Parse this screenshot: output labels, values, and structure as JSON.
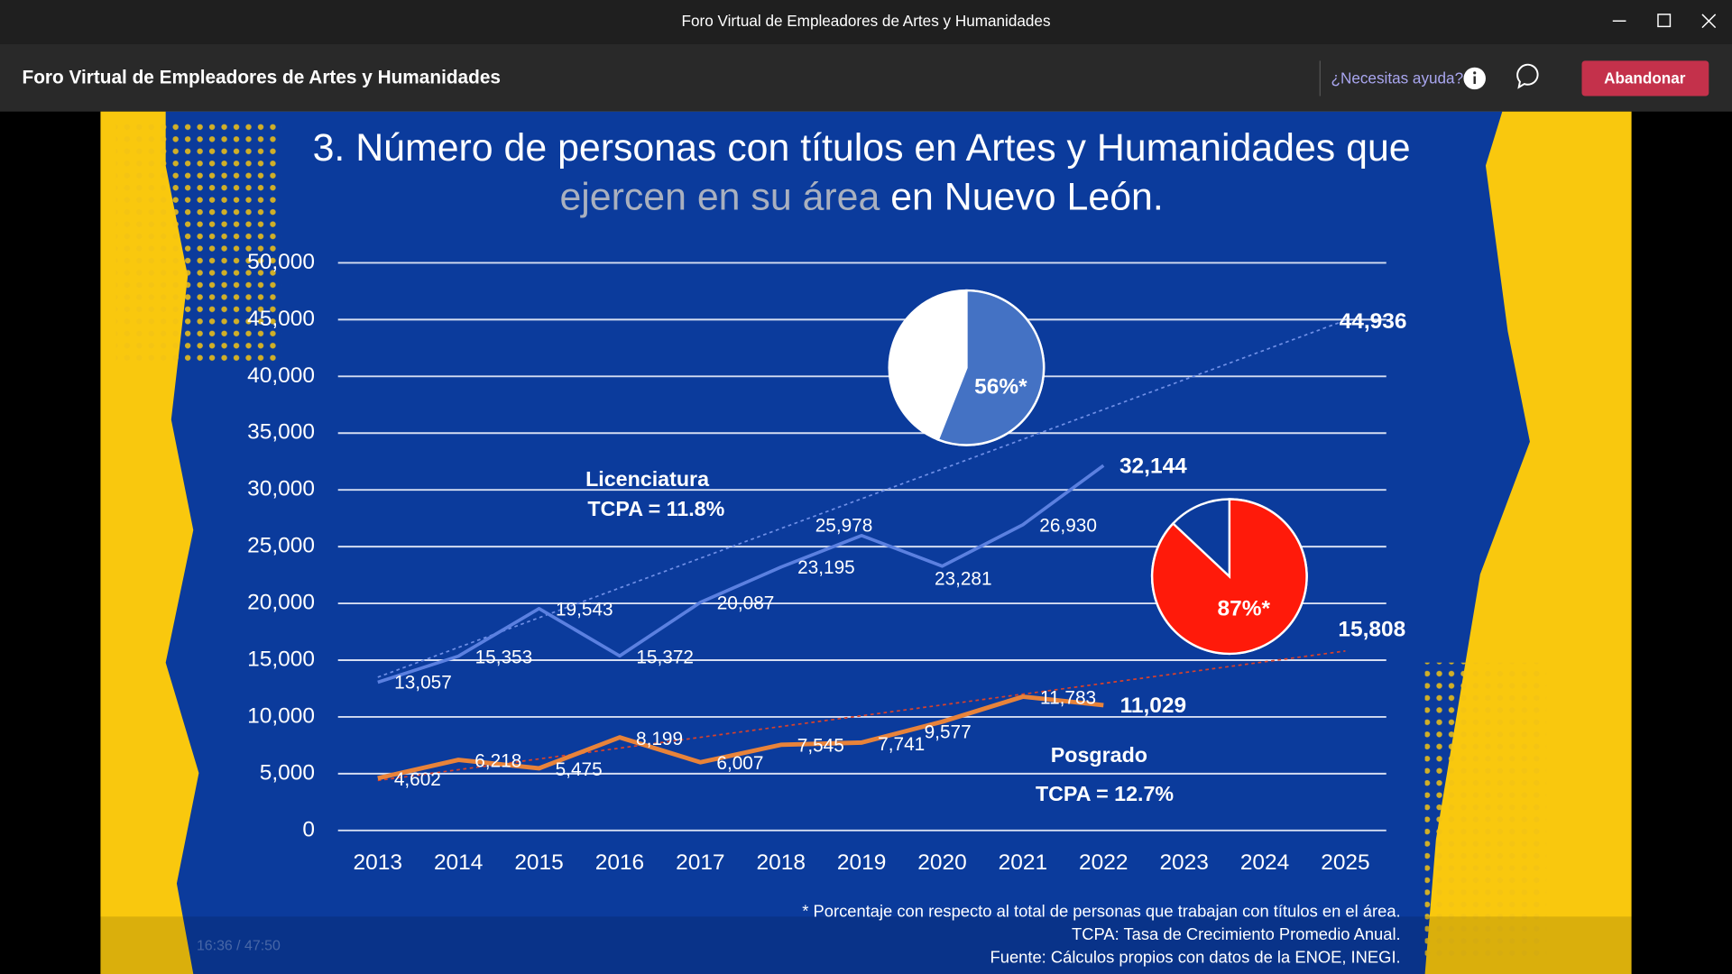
{
  "window": {
    "title": "Foro Virtual de Empleadores de Artes y Humanidades"
  },
  "header": {
    "title": "Foro Virtual de Empleadores de Artes y Humanidades",
    "help": "¿Necesitas ayuda?",
    "leave_button": "Abandonar"
  },
  "player": {
    "time": "16:36 / 47:50"
  },
  "chart_data": {
    "type": "line",
    "title": {
      "line1": "3. Número de personas con títulos en Artes y Humanidades que",
      "line2_highlight": "ejercen en su área",
      "line2_rest": "en Nuevo León."
    },
    "categories": [
      "2013",
      "2014",
      "2015",
      "2016",
      "2017",
      "2018",
      "2019",
      "2020",
      "2021",
      "2022",
      "2023",
      "2024",
      "2025"
    ],
    "ylim": [
      0,
      50000
    ],
    "yticks": [
      0,
      {
        "value": 5000,
        "label": "5,000"
      },
      {
        "value": 10000,
        "label": "10,000"
      },
      {
        "value": 15000,
        "label": "15,000"
      },
      {
        "value": 20000,
        "label": "20,000"
      },
      {
        "value": 25000,
        "label": "25,000"
      },
      {
        "value": 30000,
        "label": "30,000"
      },
      {
        "value": 35000,
        "label": "35,000"
      },
      {
        "value": 40000,
        "label": "40,000"
      },
      {
        "value": 45000,
        "label": "45,000"
      },
      {
        "value": 50000,
        "label": "50,000"
      }
    ],
    "grid": true,
    "series": [
      {
        "name": "Licenciatura",
        "color": "#5b80e0",
        "values": [
          13057,
          15353,
          19543,
          15372,
          20087,
          23195,
          25978,
          23281,
          26930,
          32144,
          null,
          null,
          null
        ],
        "value_labels": [
          "13,057",
          "15,353",
          "19,543",
          "15,372",
          "20,087",
          "23,195",
          "25,978",
          "23,281",
          "26,930",
          "32,144",
          null,
          null,
          null
        ],
        "tcpa": "TCPA = 11.8%",
        "trend_start": 13500,
        "trend_end": 44936,
        "trend_end_label": "44,936",
        "share": 56,
        "share_label": "56%*",
        "share_color": "#4472c4",
        "share_rest_color": "#ffffff"
      },
      {
        "name": "Posgrado",
        "color": "#e8833a",
        "values": [
          4602,
          6218,
          5475,
          8199,
          6007,
          7545,
          7741,
          9577,
          11783,
          11029,
          null,
          null,
          null
        ],
        "value_labels": [
          "4,602",
          "6,218",
          "5,475",
          "8,199",
          "6,007",
          "7,545",
          "7,741",
          "9,577",
          "11,783",
          "11,029",
          null,
          null,
          null
        ],
        "tcpa": "TCPA = 12.7%",
        "trend_start": 4400,
        "trend_end": 15808,
        "trend_end_label": "15,808",
        "share": 87,
        "share_label": "87%*",
        "share_color": "#ff1a0a",
        "share_rest_color": "#0b3b9c"
      }
    ],
    "footnotes": [
      "* Porcentaje con respecto al total de personas que trabajan con títulos en el área.",
      "TCPA: Tasa de Crecimiento Promedio Anual.",
      "Fuente: Cálculos propios con datos de la ENOE, INEGI."
    ]
  }
}
